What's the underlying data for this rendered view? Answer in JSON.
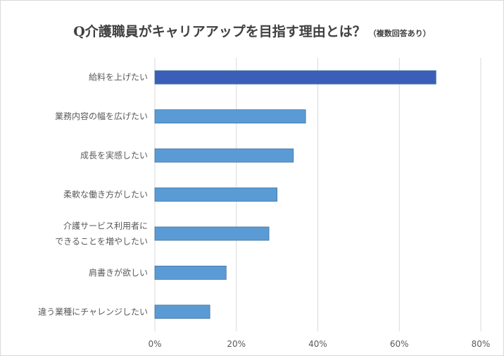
{
  "chart_data": {
    "type": "bar",
    "orientation": "horizontal",
    "title": "Q介護職員がキャリアアップを目指す理由とは？",
    "subtitle": "（複数回答あり）",
    "categories": [
      [
        "給料を上げたい"
      ],
      [
        "業務内容の幅を広げたい"
      ],
      [
        "成長を実感したい"
      ],
      [
        "柔軟な働き方がしたい"
      ],
      [
        "介護サービス利用者に",
        "できることを増やしたい"
      ],
      [
        "肩書きが欲しい"
      ],
      [
        "違う業種にチャレンジしたい"
      ]
    ],
    "values": [
      69,
      37,
      34,
      30,
      28,
      17.5,
      13.5
    ],
    "xlim": [
      0,
      80
    ],
    "xticks": [
      "0%",
      "20%",
      "40%",
      "60%",
      "80%"
    ],
    "grid": true,
    "colors": {
      "highlight": "#3b5fb8",
      "bar": "#5b9bd5",
      "bar_border": "#41719c",
      "grid": "#d9d9d9"
    }
  }
}
